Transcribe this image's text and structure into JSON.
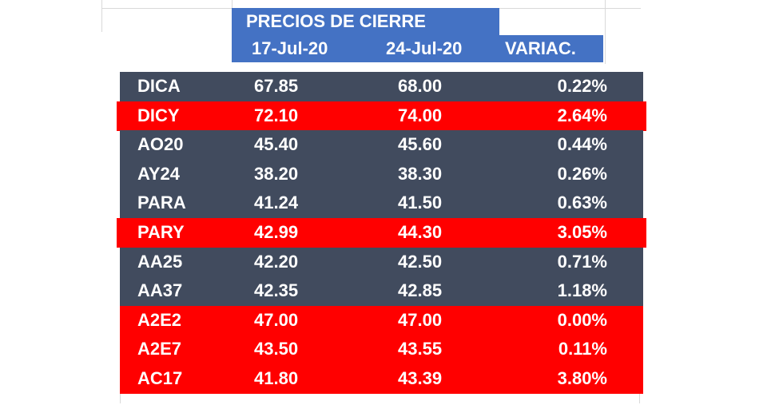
{
  "table": {
    "title": "PRECIOS DE CIERRE",
    "columns": [
      "17-Jul-20",
      "24-Jul-20",
      "VARIAC."
    ],
    "rows": [
      {
        "cells": [
          "DICA",
          "67.85",
          "68.00",
          "0.22%"
        ],
        "color": "#414b5e"
      },
      {
        "cells": [
          "DICY",
          "72.10",
          "74.00",
          "2.64%"
        ],
        "color": "#ff0000"
      },
      {
        "cells": [
          "AO20",
          "45.40",
          "45.60",
          "0.44%"
        ],
        "color": "#414b5e"
      },
      {
        "cells": [
          "AY24",
          "38.20",
          "38.30",
          "0.26%"
        ],
        "color": "#414b5e"
      },
      {
        "cells": [
          "PARA",
          "41.24",
          "41.50",
          "0.63%"
        ],
        "color": "#414b5e"
      },
      {
        "cells": [
          "PARY",
          "42.99",
          "44.30",
          "3.05%"
        ],
        "color": "#ff0000"
      },
      {
        "cells": [
          "AA25",
          "42.20",
          "42.50",
          "0.71%"
        ],
        "color": "#414b5e"
      },
      {
        "cells": [
          "AA37",
          "42.35",
          "42.85",
          "1.18%"
        ],
        "color": "#414b5e"
      },
      {
        "cells": [
          "A2E2",
          "47.00",
          "47.00",
          "0.00%"
        ],
        "color": "#ff0000"
      },
      {
        "cells": [
          "A2E7",
          "43.50",
          "43.55",
          "0.11%"
        ],
        "color": "#ff0000"
      },
      {
        "cells": [
          "AC17",
          "41.80",
          "43.39",
          "3.80%"
        ],
        "color": "#ff0000"
      }
    ]
  }
}
